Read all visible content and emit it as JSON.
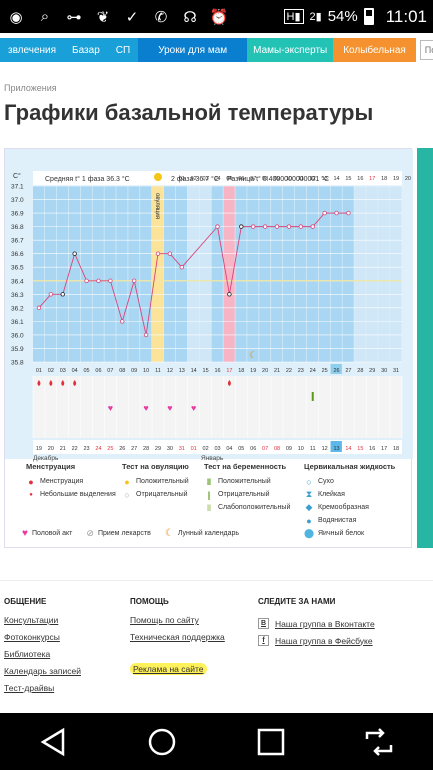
{
  "status_bar": {
    "battery": "54%",
    "time": "11:01",
    "icons": [
      "whatsapp-icon",
      "search-icon",
      "dumbbell-icon",
      "leaf-icon",
      "check-icon",
      "phone-icon",
      "headphones-icon",
      "alarm-icon",
      "h-signal-icon",
      "signal-2-icon",
      "battery-icon"
    ]
  },
  "nav": {
    "items": [
      {
        "label": "звлечения",
        "color": "#1aa0d8"
      },
      {
        "label": "Базар",
        "color": "#1aa0d8"
      },
      {
        "label": "СП",
        "color": "#1aa0d8"
      },
      {
        "label": "Уроки для мам",
        "color": "#0a7fd0"
      },
      {
        "label": "Мамы-эксперты",
        "color": "#22c3b5"
      },
      {
        "label": "Колыбельная",
        "color": "#f5922f"
      }
    ],
    "search_placeholder": "Поиск по"
  },
  "breadcrumb": "Приложения",
  "title": "Графики базальной температуры",
  "chart": {
    "phase1_label": "Средняя t° 1 фаза 36.3 °С",
    "phase2_label": "2 фаза 36.7 °С",
    "diff_label": "Разница t° 0.4000000000001 °С",
    "ovulation_label": "овуляция",
    "y_unit": "С°",
    "month_dec": "Декабрь",
    "month_jan": "Январь"
  },
  "chart_data": {
    "type": "line",
    "cycle_days": [
      "01",
      "02",
      "03",
      "04",
      "05",
      "06",
      "07",
      "08",
      "09",
      "10",
      "11",
      "12",
      "13",
      "14",
      "15",
      "16",
      "17",
      "18",
      "19",
      "20",
      "21",
      "22",
      "23",
      "24",
      "25",
      "26",
      "27",
      "28",
      "29",
      "30",
      "31"
    ],
    "top_days": [
      "01",
      "02",
      "03",
      "04",
      "05",
      "06",
      "07",
      "08",
      "09",
      "10",
      "11",
      "12",
      "13",
      "14",
      "15",
      "16",
      "17",
      "18",
      "19",
      "20"
    ],
    "dates": [
      "19",
      "20",
      "21",
      "22",
      "23",
      "24",
      "25",
      "26",
      "27",
      "28",
      "29",
      "30",
      "31",
      "01",
      "02",
      "03",
      "04",
      "05",
      "06",
      "07",
      "08",
      "09",
      "10",
      "11",
      "12",
      "13",
      "14",
      "15",
      "16",
      "17",
      "18"
    ],
    "y_ticks": [
      "37.1",
      "37.0",
      "36.9",
      "36.8",
      "36.7",
      "36.6",
      "36.5",
      "36.4",
      "36.3",
      "36.2",
      "36.1",
      "36.0",
      "35.9",
      "35.8"
    ],
    "ylim": [
      35.8,
      37.1
    ],
    "temperatures": [
      36.2,
      36.3,
      36.3,
      36.6,
      36.4,
      36.4,
      36.4,
      36.1,
      36.4,
      36.0,
      36.6,
      36.6,
      36.5,
      null,
      null,
      36.8,
      36.3,
      36.8,
      36.8,
      36.8,
      36.8,
      36.8,
      36.8,
      36.8,
      36.9,
      36.9,
      36.9
    ],
    "coverline": 36.4,
    "ovulation_day": 11,
    "menstruation_days": [
      1,
      2,
      3,
      4,
      17
    ],
    "intercourse_days": [
      7,
      10,
      12,
      14
    ],
    "pregnancy_test_day": 24,
    "lunar_day": 19,
    "highlight_day": "26",
    "today_day": "17"
  },
  "legend": {
    "menstruation": {
      "head": "Менструация",
      "items": [
        "Менструация",
        "Небольшие выделения"
      ]
    },
    "ovulation_test": {
      "head": "Тест на овуляцию",
      "items": [
        "Положительный",
        "Отрицательный"
      ]
    },
    "pregnancy_test": {
      "head": "Тест на беременность",
      "items": [
        "Положительный",
        "Отрицательный",
        "Слабоположительный"
      ]
    },
    "cervical": {
      "head": "Цервикальная жидкость",
      "items": [
        "Сухо",
        "Клейкая",
        "Кремообразная",
        "Водянистая",
        "Яичный белок"
      ]
    },
    "bottom": [
      "Половой акт",
      "Прием лекарств",
      "Лунный календарь"
    ]
  },
  "footer": {
    "col1": {
      "head": "ОБЩЕНИЕ",
      "links": [
        "Консультации",
        "Фотоконкурсы",
        "Библиотека",
        "Календарь записей",
        "Тест-драйвы"
      ]
    },
    "col2": {
      "head": "ПОМОЩЬ",
      "links": [
        "Помощь по сайту",
        "Техническая поддержка",
        "Реклама на сайте"
      ]
    },
    "col3": {
      "head": "СЛЕДИТЕ ЗА НАМИ",
      "links": [
        "Наша группа в Вконтакте",
        "Наша группа в Фейсбуке"
      ]
    }
  }
}
